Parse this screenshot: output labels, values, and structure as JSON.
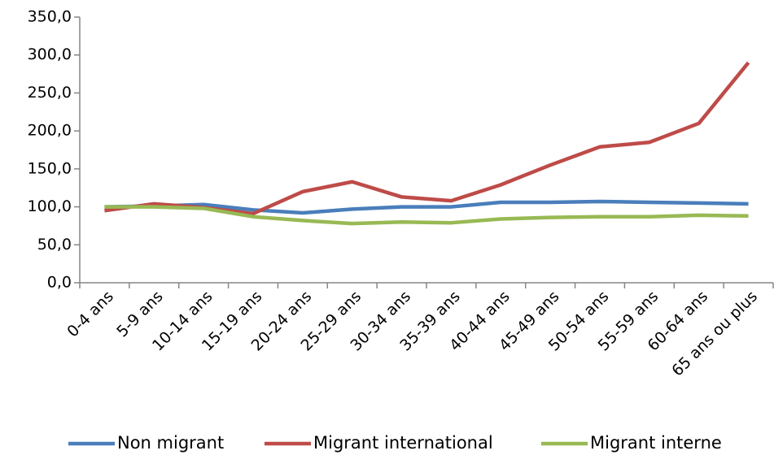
{
  "chart_data": {
    "type": "line",
    "categories": [
      "0-4 ans",
      "5-9 ans",
      "10-14 ans",
      "15-19 ans",
      "20-24 ans",
      "25-29 ans",
      "30-34 ans",
      "35-39 ans",
      "40-44 ans",
      "45-49 ans",
      "50-54 ans",
      "55-59 ans",
      "60-64 ans",
      "65 ans ou plus"
    ],
    "series": [
      {
        "name": "Non migrant",
        "color": "#4a7ebb",
        "values": [
          100,
          101,
          103,
          96,
          92,
          97,
          100,
          100,
          106,
          106,
          107,
          106,
          105,
          104
        ]
      },
      {
        "name": "Migrant international",
        "color": "#be4b48",
        "values": [
          95,
          104,
          99,
          91,
          120,
          133,
          113,
          108,
          129,
          155,
          179,
          185,
          210,
          290
        ]
      },
      {
        "name": "Migrant interne",
        "color": "#98b954",
        "values": [
          100,
          100,
          98,
          87,
          82,
          78,
          80,
          79,
          84,
          86,
          87,
          87,
          89,
          88
        ]
      }
    ],
    "ylim": [
      0,
      350
    ],
    "yticks": [
      {
        "value": 0,
        "label": "0,0"
      },
      {
        "value": 50,
        "label": "50,0"
      },
      {
        "value": 100,
        "label": "100,0"
      },
      {
        "value": 150,
        "label": "150,0"
      },
      {
        "value": 200,
        "label": "200,0"
      },
      {
        "value": 250,
        "label": "250,0"
      },
      {
        "value": 300,
        "label": "300,0"
      },
      {
        "value": 350,
        "label": "350,0"
      }
    ],
    "grid": false,
    "legend": "bottom"
  }
}
